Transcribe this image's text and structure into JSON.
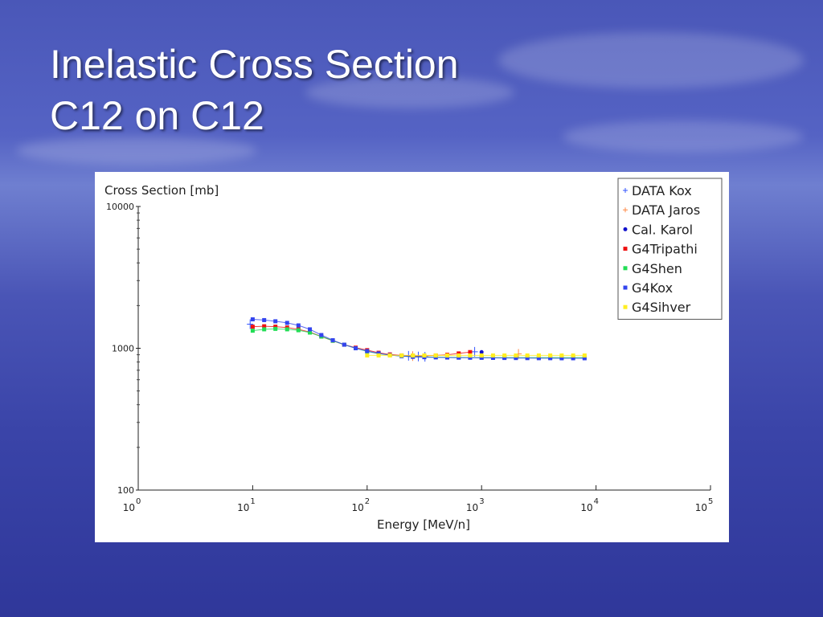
{
  "slide": {
    "title_line1": "Inelastic Cross Section",
    "title_line2": "C12 on C12"
  },
  "chart_data": {
    "type": "scatter",
    "xlabel": "Energy [MeV/n]",
    "ylabel": "Cross Section [mb]",
    "x_scale": "log",
    "y_scale": "log",
    "xlim": [
      1,
      100000
    ],
    "ylim": [
      100,
      10000
    ],
    "x_ticks": [
      {
        "value": 1,
        "base": "10",
        "exp": "0"
      },
      {
        "value": 10,
        "base": "10",
        "exp": "1"
      },
      {
        "value": 100,
        "base": "10",
        "exp": "2"
      },
      {
        "value": 1000,
        "base": "10",
        "exp": "3"
      },
      {
        "value": 10000,
        "base": "10",
        "exp": "4"
      },
      {
        "value": 100000,
        "base": "10",
        "exp": "5"
      }
    ],
    "y_ticks": [
      {
        "value": 100,
        "label": "100"
      },
      {
        "value": 1000,
        "label": "1000"
      },
      {
        "value": 10000,
        "label": "10000"
      }
    ],
    "grid": false,
    "legend_position": "top-right",
    "series": [
      {
        "name": "DATA Kox",
        "color": "#3355ff",
        "marker": "plus",
        "line": false,
        "x": [
          9.5,
          230,
          280,
          320,
          870
        ],
        "y": [
          1480,
          885,
          875,
          870,
          945
        ]
      },
      {
        "name": "DATA Jaros",
        "color": "#ff8844",
        "marker": "plus",
        "line": false,
        "x": [
          250,
          2100
        ],
        "y": [
          880,
          912
        ]
      },
      {
        "name": "Cal. Karol",
        "color": "#1111cc",
        "marker": "dot",
        "line": false,
        "x": [
          1000
        ],
        "y": [
          940
        ]
      },
      {
        "name": "G4Tripathi",
        "color": "#ee1111",
        "marker": "square",
        "line": true,
        "x": [
          10,
          12.6,
          15.8,
          20,
          25.1,
          31.6,
          39.8,
          50.1,
          63.1,
          79.4,
          100,
          126,
          158,
          200,
          251,
          316,
          398,
          501,
          631,
          794
        ],
        "y": [
          1420,
          1430,
          1420,
          1400,
          1360,
          1300,
          1210,
          1130,
          1060,
          1010,
          970,
          930,
          905,
          890,
          885,
          885,
          890,
          900,
          920,
          940
        ]
      },
      {
        "name": "G4Shen",
        "color": "#22dd55",
        "marker": "square",
        "line": true,
        "x": [
          10,
          12.6,
          15.8,
          20,
          25.1,
          31.6,
          39.8,
          50.1,
          63.1,
          79.4,
          100,
          126,
          158,
          200,
          251,
          316,
          398,
          501,
          631,
          794,
          1000,
          1259,
          1585,
          1995,
          2512,
          3162,
          3981,
          5012,
          6310,
          7943
        ],
        "y": [
          1330,
          1360,
          1370,
          1360,
          1340,
          1290,
          1210,
          1130,
          1060,
          1000,
          950,
          915,
          895,
          880,
          872,
          868,
          866,
          864,
          862,
          861,
          860,
          860,
          860,
          860,
          860,
          860,
          860,
          860,
          860,
          860
        ]
      },
      {
        "name": "G4Kox",
        "color": "#3344ee",
        "marker": "square",
        "line": true,
        "x": [
          10,
          12.6,
          15.8,
          20,
          25.1,
          31.6,
          39.8,
          50.1,
          63.1,
          79.4,
          100,
          126,
          158,
          200,
          251,
          316,
          398,
          501,
          631,
          794,
          1000,
          1259,
          1585,
          1995,
          2512,
          3162,
          3981,
          5012,
          6310,
          7943
        ],
        "y": [
          1600,
          1580,
          1550,
          1510,
          1450,
          1360,
          1240,
          1140,
          1060,
          1000,
          955,
          920,
          895,
          880,
          870,
          865,
          862,
          860,
          858,
          857,
          856,
          855,
          854,
          853,
          852,
          851,
          851,
          850,
          850,
          850
        ]
      },
      {
        "name": "G4Sihver",
        "color": "#ffee22",
        "marker": "square",
        "line": true,
        "x": [
          100,
          126,
          158,
          200,
          251,
          316,
          398,
          501,
          631,
          794,
          1000,
          1259,
          1585,
          1995,
          2512,
          3162,
          3981,
          5012,
          6310,
          7943
        ],
        "y": [
          890,
          890,
          890,
          890,
          890,
          890,
          890,
          890,
          890,
          890,
          890,
          890,
          890,
          890,
          890,
          890,
          890,
          890,
          890,
          890
        ]
      }
    ]
  }
}
